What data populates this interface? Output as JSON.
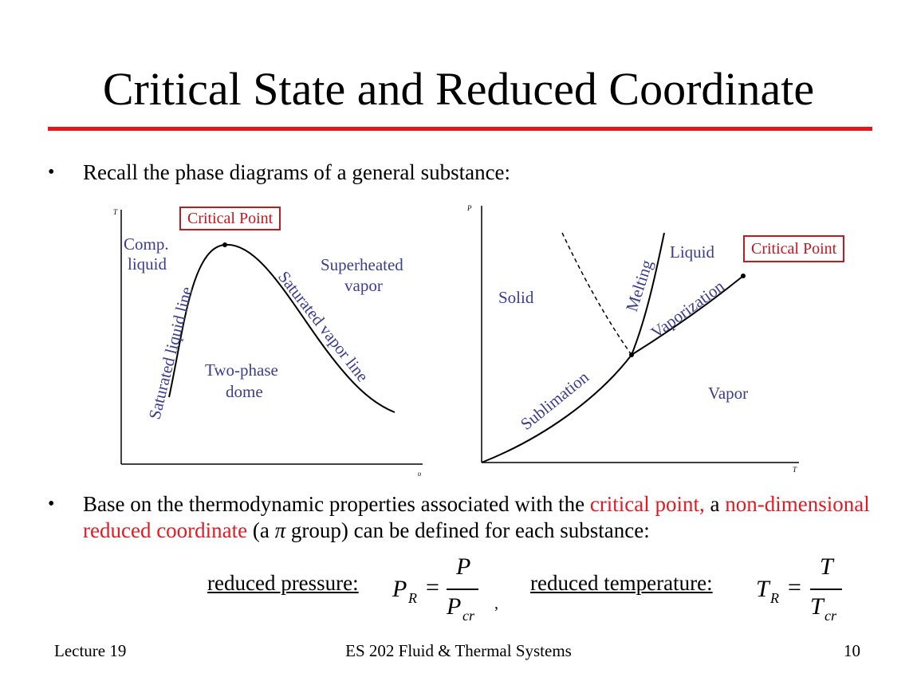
{
  "slide": {
    "title": "Critical State and Reduced Coordinate",
    "bullet1": "Recall the phase diagrams of a general substance:",
    "bullet2": {
      "part1": "Base on the thermodynamic properties associated with the ",
      "critical_point": "critical point,",
      "part2": " a ",
      "non_dim": "non-dimensional reduced coordinate",
      "part3": " (a ",
      "pi": "π",
      "part4": " group) can be defined for each substance:"
    },
    "bullet_symbol": "•",
    "equations": {
      "reduced_pressure_label": "reduced pressure:",
      "reduced_temperature_label": "reduced temperature:",
      "pr_lhs": "P",
      "pr_sub": "R",
      "pr_num": "P",
      "pr_den": "P",
      "pr_den_sub": "cr",
      "tr_lhs": "T",
      "tr_sub": "R",
      "tr_num": "T",
      "tr_den": "T",
      "tr_den_sub": "cr",
      "equals": "=",
      "comma": ","
    },
    "footer": {
      "left": "Lecture 19",
      "center": "ES 202  Fluid & Thermal Systems",
      "right": "10"
    },
    "accent_color": "#e8161b"
  },
  "diagram_tv": {
    "y_axis": "T",
    "x_axis": "υ",
    "critical_point": "Critical Point",
    "comp_liquid_1": "Comp.",
    "comp_liquid_2": "liquid",
    "superheated_1": "Superheated",
    "superheated_2": "vapor",
    "two_phase_1": "Two-phase",
    "two_phase_2": "dome",
    "sat_liquid": "Saturated liquid line",
    "sat_vapor": "Saturated vapor line"
  },
  "diagram_pt": {
    "y_axis": "P",
    "x_axis": "T",
    "critical_point": "Critical Point",
    "solid": "Solid",
    "liquid": "Liquid",
    "vapor": "Vapor",
    "melting": "Melting",
    "vaporization": "Vaporization",
    "sublimation": "Sublimation"
  }
}
